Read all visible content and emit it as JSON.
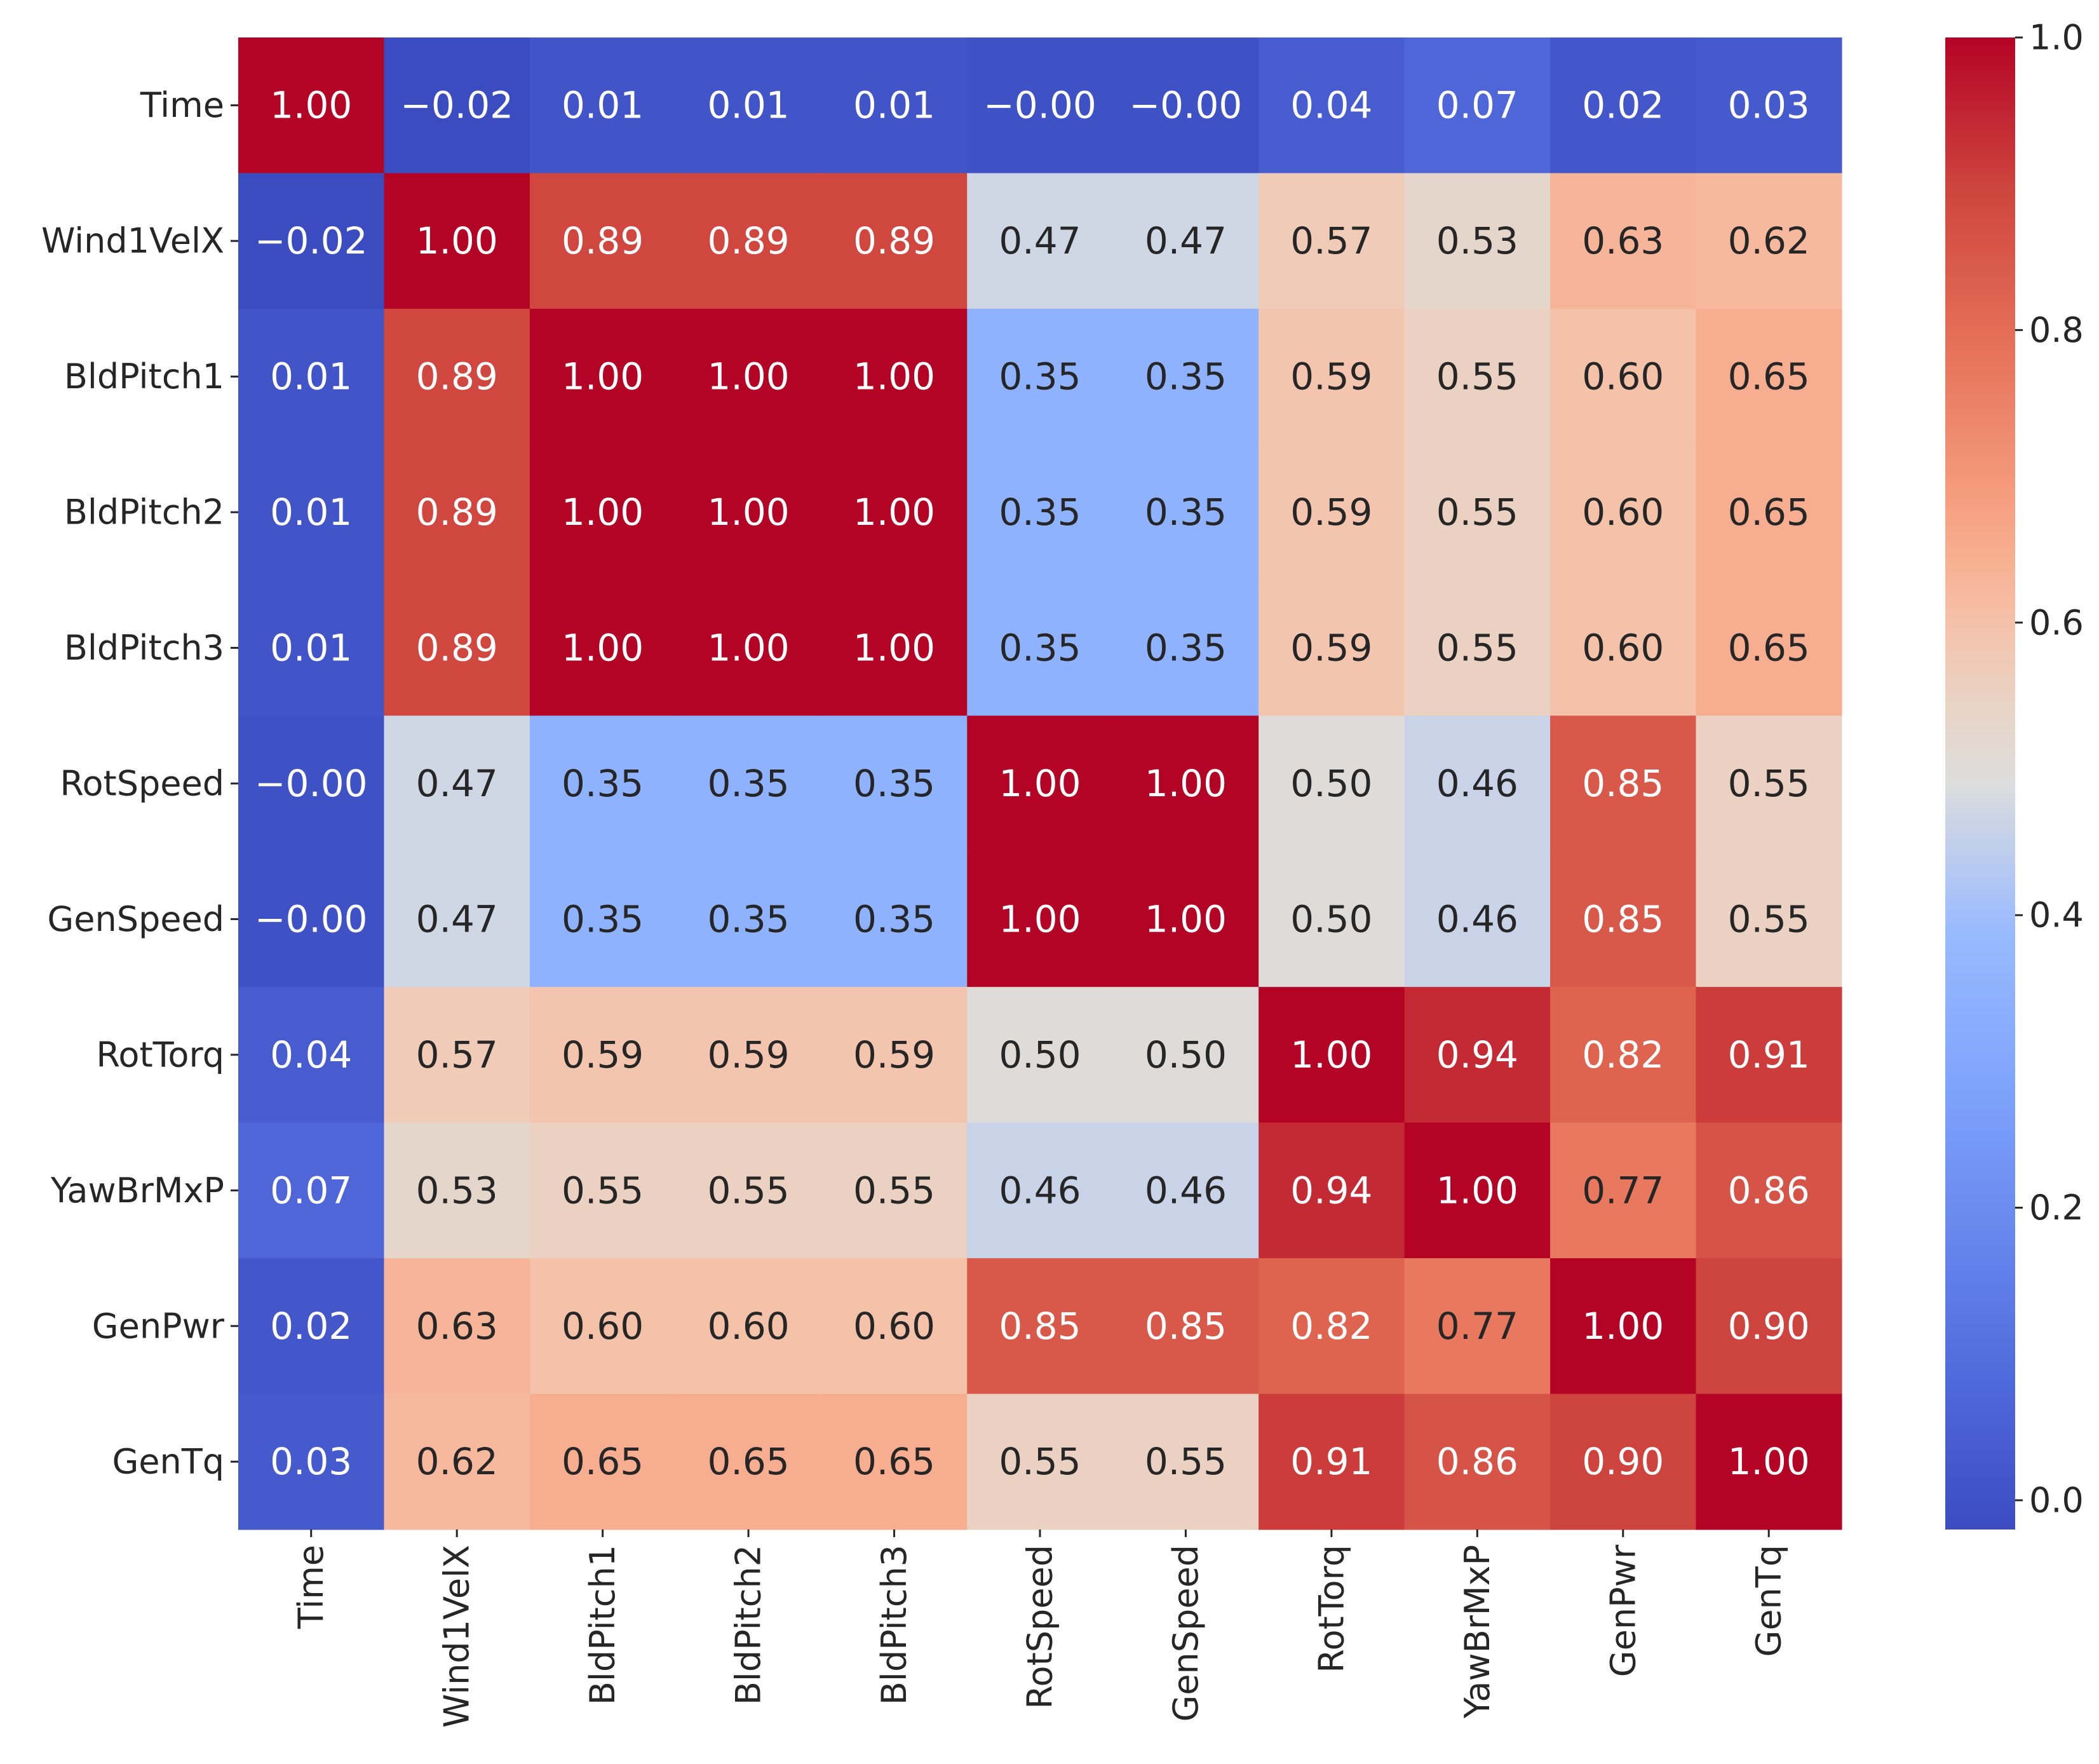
{
  "chart_data": {
    "type": "heatmap",
    "title": "",
    "xlabel": "",
    "ylabel": "",
    "variables": [
      "Time",
      "Wind1VelX",
      "BldPitch1",
      "BldPitch2",
      "BldPitch3",
      "RotSpeed",
      "GenSpeed",
      "RotTorq",
      "YawBrMxP",
      "GenPwr",
      "GenTq"
    ],
    "matrix": [
      [
        1.0,
        -0.02,
        0.01,
        0.01,
        0.01,
        -0.0,
        -0.0,
        0.04,
        0.07,
        0.02,
        0.03
      ],
      [
        -0.02,
        1.0,
        0.89,
        0.89,
        0.89,
        0.47,
        0.47,
        0.57,
        0.53,
        0.63,
        0.62
      ],
      [
        0.01,
        0.89,
        1.0,
        1.0,
        1.0,
        0.35,
        0.35,
        0.59,
        0.55,
        0.6,
        0.65
      ],
      [
        0.01,
        0.89,
        1.0,
        1.0,
        1.0,
        0.35,
        0.35,
        0.59,
        0.55,
        0.6,
        0.65
      ],
      [
        0.01,
        0.89,
        1.0,
        1.0,
        1.0,
        0.35,
        0.35,
        0.59,
        0.55,
        0.6,
        0.65
      ],
      [
        -0.0,
        0.47,
        0.35,
        0.35,
        0.35,
        1.0,
        1.0,
        0.5,
        0.46,
        0.85,
        0.55
      ],
      [
        -0.0,
        0.47,
        0.35,
        0.35,
        0.35,
        1.0,
        1.0,
        0.5,
        0.46,
        0.85,
        0.55
      ],
      [
        0.04,
        0.57,
        0.59,
        0.59,
        0.59,
        0.5,
        0.5,
        1.0,
        0.94,
        0.82,
        0.91
      ],
      [
        0.07,
        0.53,
        0.55,
        0.55,
        0.55,
        0.46,
        0.46,
        0.94,
        1.0,
        0.77,
        0.86
      ],
      [
        0.02,
        0.63,
        0.6,
        0.6,
        0.6,
        0.85,
        0.85,
        0.82,
        0.77,
        1.0,
        0.9
      ],
      [
        0.03,
        0.62,
        0.65,
        0.65,
        0.65,
        0.55,
        0.55,
        0.91,
        0.86,
        0.9,
        1.0
      ]
    ],
    "annotation_format": "0.00",
    "colormap": "coolwarm",
    "colorbar": {
      "range": [
        -0.02,
        1.0
      ],
      "ticks": [
        0.0,
        0.2,
        0.4,
        0.6,
        0.8,
        1.0
      ],
      "tick_labels": [
        "0.0",
        "0.2",
        "0.4",
        "0.6",
        "0.8",
        "1.0"
      ]
    },
    "colors": {
      "text_dark": "#262626",
      "text_light": "#ffffff",
      "axis": "#262626"
    }
  }
}
